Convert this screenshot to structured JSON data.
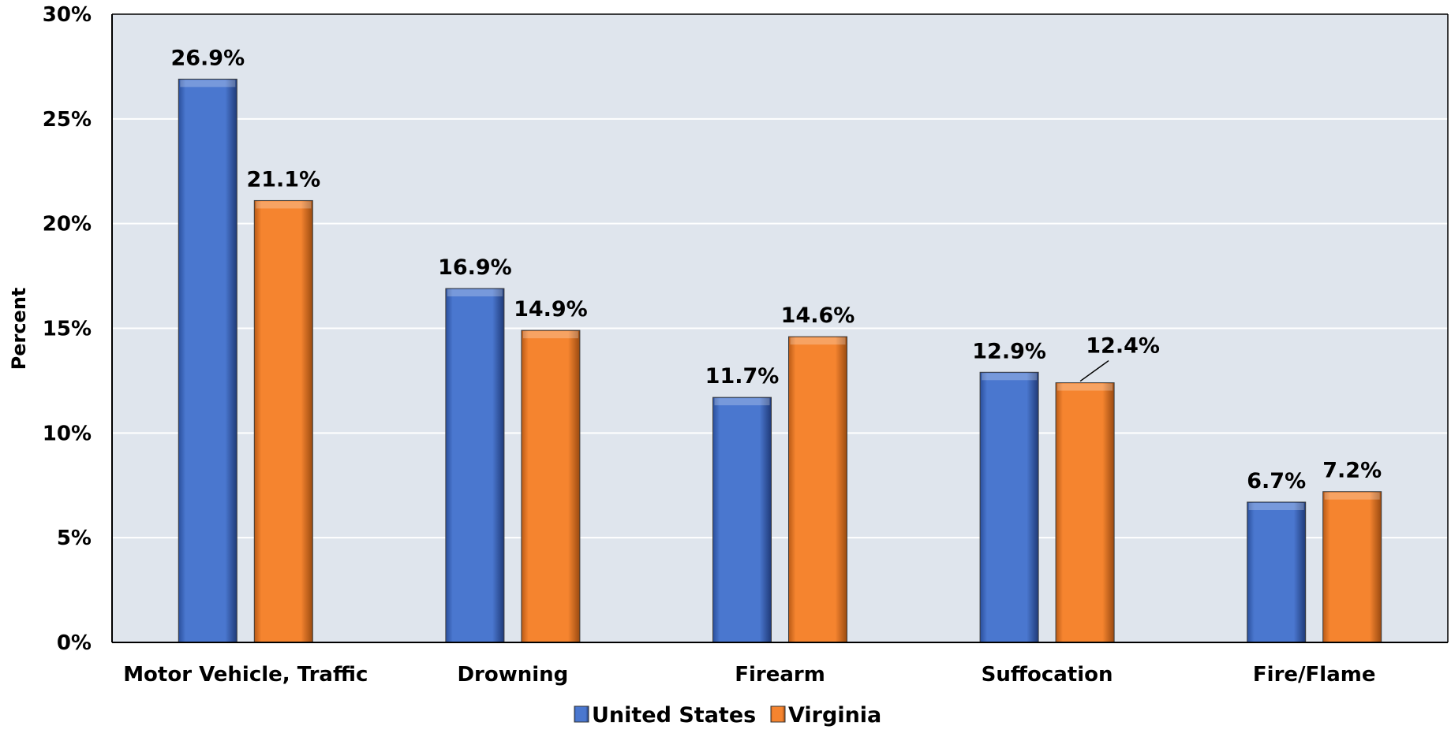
{
  "chart_data": {
    "type": "bar",
    "categories": [
      "Motor Vehicle, Traffic",
      "Drowning",
      "Firearm",
      "Suffocation",
      "Fire/Flame"
    ],
    "series": [
      {
        "name": "United States",
        "color": "#4a77cf",
        "values": [
          26.9,
          16.9,
          11.7,
          12.9,
          6.7
        ]
      },
      {
        "name": "Virginia",
        "color": "#f5842f",
        "values": [
          21.1,
          14.9,
          14.6,
          12.4,
          7.2
        ]
      }
    ],
    "data_labels": [
      [
        "26.9%",
        "16.9%",
        "11.7%",
        "12.9%",
        "6.7%"
      ],
      [
        "21.1%",
        "14.9%",
        "14.6%",
        "12.4%",
        "7.2%"
      ]
    ],
    "ylabel": "Percent",
    "ylim": [
      0,
      30
    ],
    "yticks": [
      0,
      5,
      10,
      15,
      20,
      25,
      30
    ],
    "ytick_labels": [
      "0%",
      "5%",
      "10%",
      "15%",
      "20%",
      "25%",
      "30%"
    ],
    "grid": true,
    "legend": "bottom-center",
    "plot_background": "#dfe5ed"
  }
}
